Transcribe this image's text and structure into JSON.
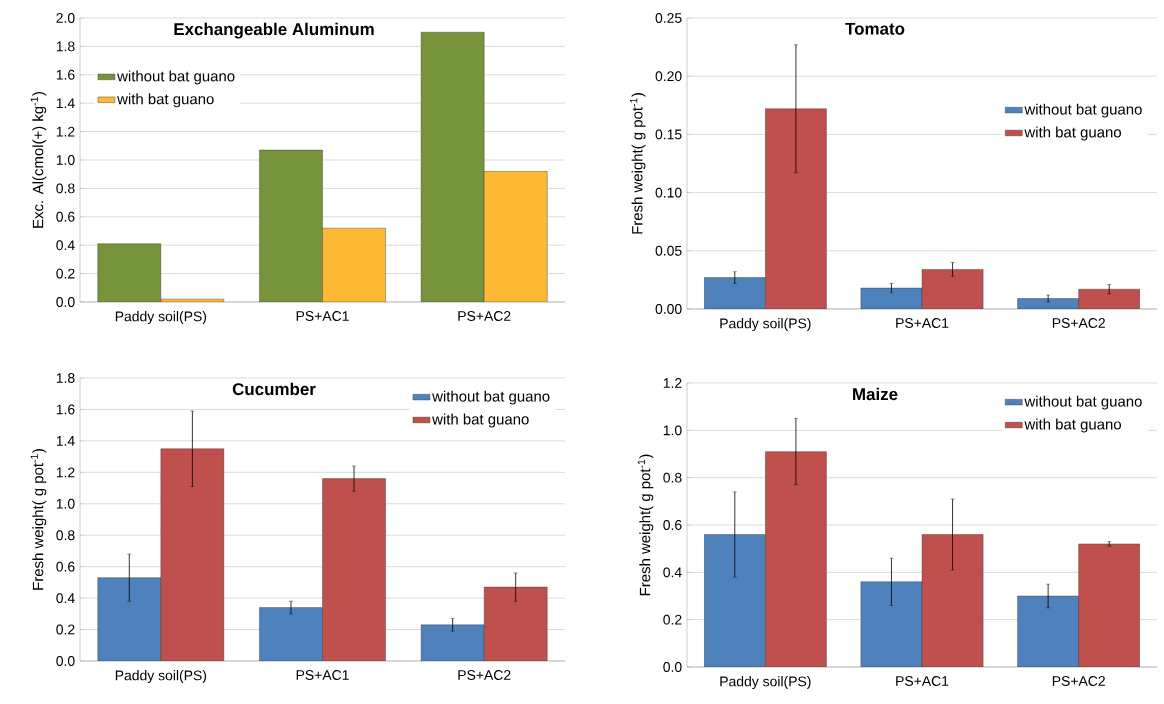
{
  "chart_data": [
    {
      "type": "bar",
      "title": "Exchangeable Aluminum",
      "ylabel": "Exc. Al(cmol(+) kg$^{-1}$)",
      "categories": [
        "Paddy soil(PS)",
        "PS+AC1",
        "PS+AC2"
      ],
      "ylim": [
        0,
        2.0
      ],
      "yticks": [
        {
          "value": 0,
          "label": "0.0"
        },
        0.2,
        0.4,
        0.6,
        0.8,
        {
          "value": 1.0,
          "label": "1.0"
        },
        1.2,
        1.4,
        1.6,
        1.8,
        {
          "value": 2.0,
          "label": "2.0"
        }
      ],
      "grid": "y",
      "legend": "top left",
      "series": [
        {
          "name": "without bat guano",
          "color": "#77933c",
          "values": [
            0.41,
            1.07,
            1.9
          ]
        },
        {
          "name": "with bat guano",
          "color": "#fdb934",
          "values": [
            0.02,
            0.52,
            0.92
          ]
        }
      ]
    },
    {
      "type": "bar",
      "title": "Tomato",
      "ylabel": "Fresh weight( g pot$^{-1}$)",
      "categories": [
        "Paddy soil(PS)",
        "PS+AC1",
        "PS+AC2"
      ],
      "ylim": [
        0,
        0.25
      ],
      "yticks": [
        {
          "value": 0,
          "label": "0.00"
        },
        0.05,
        {
          "value": 0.1,
          "label": "0.10"
        },
        0.15,
        {
          "value": 0.2,
          "label": "0.20"
        },
        0.25
      ],
      "grid": "y",
      "legend": "right",
      "series": [
        {
          "name": "without bat guano",
          "color": "#4f81bd",
          "values": [
            0.027,
            0.018,
            0.009
          ],
          "errors": [
            0.005,
            0.004,
            0.003
          ]
        },
        {
          "name": "with bat guano",
          "color": "#c0504d",
          "values": [
            0.172,
            0.034,
            0.017
          ],
          "errors": [
            0.055,
            0.006,
            0.004
          ]
        }
      ]
    },
    {
      "type": "bar",
      "title": "Cucumber",
      "ylabel": "Fresh weight( g pot$^{-1}$)",
      "categories": [
        "Paddy soil(PS)",
        "PS+AC1",
        "PS+AC2"
      ],
      "ylim": [
        0,
        1.8
      ],
      "yticks": [
        {
          "value": 0,
          "label": "0.0"
        },
        0.2,
        0.4,
        0.6,
        0.8,
        {
          "value": 1.0,
          "label": "1.0"
        },
        1.2,
        1.4,
        1.6,
        1.8
      ],
      "grid": "y",
      "legend": "top right",
      "series": [
        {
          "name": "without bat guano",
          "color": "#4f81bd",
          "values": [
            0.53,
            0.34,
            0.23
          ],
          "errors": [
            0.15,
            0.04,
            0.04
          ]
        },
        {
          "name": "with bat guano",
          "color": "#c0504d",
          "values": [
            1.35,
            1.16,
            0.47
          ],
          "errors": [
            0.24,
            0.08,
            0.09
          ]
        }
      ]
    },
    {
      "type": "bar",
      "title": "Maize",
      "ylabel": "Fresh weight( g pot$^{-1}$)",
      "categories": [
        "Paddy soil(PS)",
        "PS+AC1",
        "PS+AC2"
      ],
      "ylim": [
        0,
        1.2
      ],
      "yticks": [
        {
          "value": 0,
          "label": "0.0"
        },
        0.2,
        0.4,
        0.6,
        0.8,
        {
          "value": 1.0,
          "label": "1.0"
        },
        1.2
      ],
      "grid": "y",
      "legend": "top right",
      "series": [
        {
          "name": "without bat guano",
          "color": "#4f81bd",
          "values": [
            0.56,
            0.36,
            0.3
          ],
          "errors": [
            0.18,
            0.1,
            0.05
          ]
        },
        {
          "name": "with bat guano",
          "color": "#c0504d",
          "values": [
            0.91,
            0.56,
            0.52
          ],
          "errors": [
            0.14,
            0.15,
            0.01
          ]
        }
      ]
    }
  ]
}
